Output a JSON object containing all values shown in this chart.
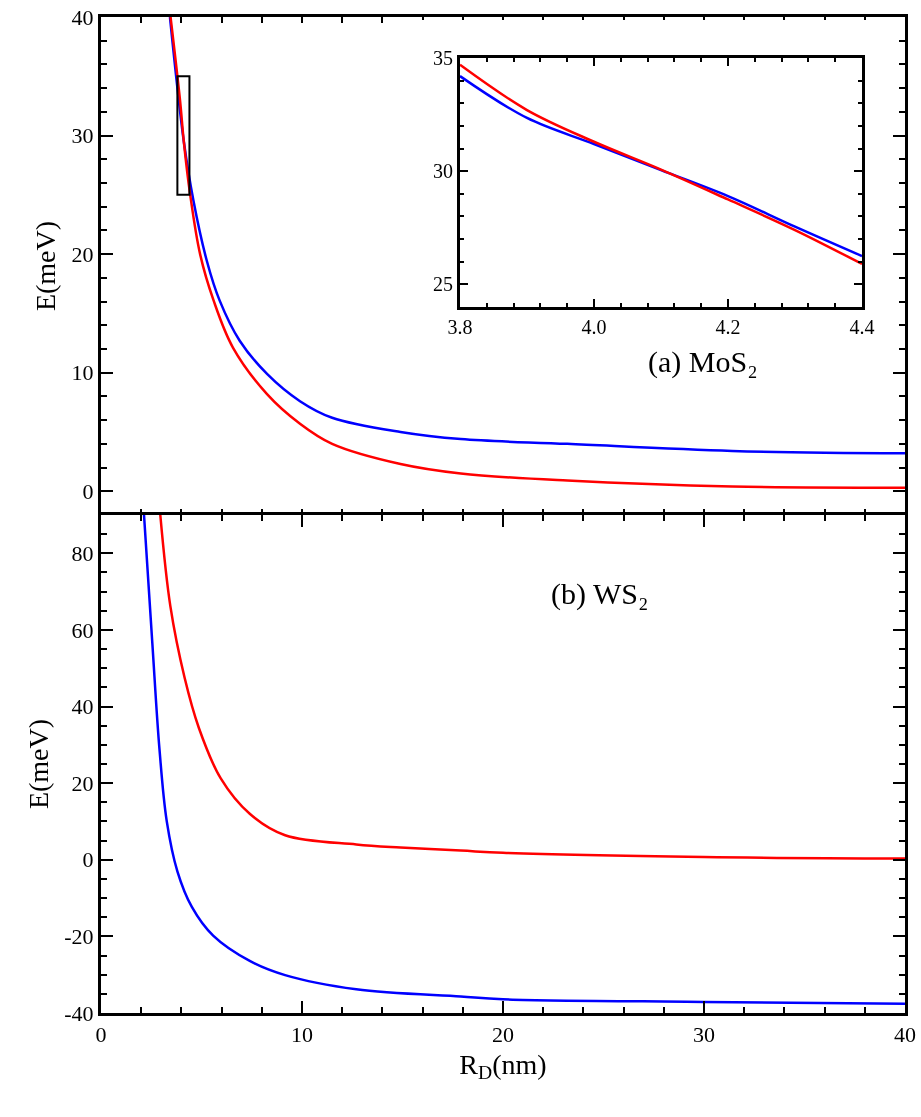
{
  "chart_data": [
    {
      "type": "line",
      "ylabel": "E(meV)",
      "annotations": [
        "(a) MoS₂"
      ],
      "tick_labels": "y",
      "xlim": [
        0,
        40
      ],
      "ylim": [
        -2,
        40
      ],
      "xticks": [
        0,
        {
          "value": 2,
          "label": null
        },
        {
          "value": 4,
          "label": null
        },
        {
          "value": 6,
          "label": null
        },
        {
          "value": 8,
          "label": null
        },
        {
          "value": 10,
          "label": null
        },
        {
          "value": 12,
          "label": null
        },
        {
          "value": 14,
          "label": null
        },
        {
          "value": 16,
          "label": null
        },
        {
          "value": 18,
          "label": null
        },
        {
          "value": 20,
          "label": null
        },
        {
          "value": 22,
          "label": null
        },
        {
          "value": 24,
          "label": null
        },
        {
          "value": 26,
          "label": null
        },
        {
          "value": 28,
          "label": null
        },
        {
          "value": 30,
          "label": null
        },
        {
          "value": 32,
          "label": null
        },
        {
          "value": 34,
          "label": null
        },
        {
          "value": 36,
          "label": null
        },
        {
          "value": 38,
          "label": null
        },
        {
          "value": 40,
          "label": null
        }
      ],
      "yticks": [
        0,
        {
          "value": 2,
          "label": null
        },
        {
          "value": 4,
          "label": null
        },
        {
          "value": 6,
          "label": null
        },
        {
          "value": 8,
          "label": null
        },
        10,
        {
          "value": 12,
          "label": null
        },
        {
          "value": 14,
          "label": null
        },
        {
          "value": 16,
          "label": null
        },
        {
          "value": 18,
          "label": null
        },
        20,
        {
          "value": 22,
          "label": null
        },
        {
          "value": 24,
          "label": null
        },
        {
          "value": 26,
          "label": null
        },
        {
          "value": 28,
          "label": null
        },
        30,
        {
          "value": 32,
          "label": null
        },
        {
          "value": 34,
          "label": null
        },
        {
          "value": 36,
          "label": null
        },
        {
          "value": 38,
          "label": null
        },
        40
      ],
      "grid": false,
      "series": [
        {
          "color": "#0000ff",
          "x": [
            3.43,
            4.12,
            4.6,
            5.27,
            5.9,
            6.9,
            8.26,
            9.9,
            11.5,
            14.9,
            17.9,
            23.2,
            31.4,
            40
          ],
          "values": [
            40,
            29.5,
            24.5,
            19.4,
            16.1,
            12.7,
            9.9,
            7.6,
            6.2,
            5.0,
            4.4,
            4.0,
            3.4,
            3.2
          ]
        },
        {
          "color": "#ff0000",
          "x": [
            3.46,
            3.93,
            4.12,
            4.43,
            4.93,
            5.6,
            6.57,
            8.26,
            9.9,
            11.5,
            14.9,
            17.9,
            23.2,
            31.4,
            40
          ],
          "values": [
            40,
            33,
            29.5,
            25.1,
            20.0,
            16.1,
            12.1,
            8.2,
            5.7,
            4.0,
            2.3,
            1.5,
            0.9,
            0.4,
            0.3
          ]
        }
      ]
    },
    {
      "type": "line",
      "xlim": [
        3.8,
        4.4
      ],
      "ylim": [
        24,
        35
      ],
      "xticks": [
        {
          "value": 3.8,
          "label": "3.8"
        },
        {
          "value": 3.84,
          "label": null
        },
        {
          "value": 3.88,
          "label": null
        },
        {
          "value": 3.92,
          "label": null
        },
        {
          "value": 3.96,
          "label": null
        },
        {
          "value": 4,
          "label": "4.0"
        },
        {
          "value": 4.04,
          "label": null
        },
        {
          "value": 4.08,
          "label": null
        },
        {
          "value": 4.12,
          "label": null
        },
        {
          "value": 4.16,
          "label": null
        },
        {
          "value": 4.2,
          "label": "4.2"
        },
        {
          "value": 4.24,
          "label": null
        },
        {
          "value": 4.28,
          "label": null
        },
        {
          "value": 4.32,
          "label": null
        },
        {
          "value": 4.36,
          "label": null
        },
        {
          "value": 4.4,
          "label": "4.4"
        }
      ],
      "yticks": [
        25,
        {
          "value": 26,
          "label": null
        },
        {
          "value": 27,
          "label": null
        },
        {
          "value": 28,
          "label": null
        },
        {
          "value": 29,
          "label": null
        },
        30,
        {
          "value": 31,
          "label": null
        },
        {
          "value": 32,
          "label": null
        },
        {
          "value": 33,
          "label": null
        },
        {
          "value": 34,
          "label": null
        },
        35
      ],
      "grid": false,
      "series": [
        {
          "color": "#0000ff",
          "x": [
            3.8,
            3.9,
            4.0,
            4.1,
            4.2,
            4.3,
            4.4
          ],
          "values": [
            34.2,
            32.35,
            31.2,
            30.05,
            28.9,
            27.55,
            26.25
          ]
        },
        {
          "color": "#ff0000",
          "x": [
            3.8,
            3.9,
            4.0,
            4.1,
            4.2,
            4.3,
            4.4
          ],
          "values": [
            34.7,
            32.7,
            31.3,
            30.07,
            28.75,
            27.4,
            25.9
          ]
        }
      ]
    },
    {
      "type": "line",
      "xlabel": "R$_{D}$(nm)",
      "ylabel": "E(meV)",
      "annotations": [
        "(b) WS₂"
      ],
      "xlim": [
        0,
        40
      ],
      "ylim": [
        -40,
        90
      ],
      "xticks": [
        0,
        {
          "value": 2,
          "label": null
        },
        {
          "value": 4,
          "label": null
        },
        {
          "value": 6,
          "label": null
        },
        {
          "value": 8,
          "label": null
        },
        10,
        {
          "value": 12,
          "label": null
        },
        {
          "value": 14,
          "label": null
        },
        {
          "value": 16,
          "label": null
        },
        {
          "value": 18,
          "label": null
        },
        20,
        {
          "value": 22,
          "label": null
        },
        {
          "value": 24,
          "label": null
        },
        {
          "value": 26,
          "label": null
        },
        {
          "value": 28,
          "label": null
        },
        30,
        {
          "value": 32,
          "label": null
        },
        {
          "value": 34,
          "label": null
        },
        {
          "value": 36,
          "label": null
        },
        {
          "value": 38,
          "label": null
        },
        40
      ],
      "yticks": [
        -40,
        {
          "value": -35,
          "label": null
        },
        {
          "value": -30,
          "label": null
        },
        {
          "value": -25,
          "label": null
        },
        -20,
        {
          "value": -15,
          "label": null
        },
        {
          "value": -10,
          "label": null
        },
        {
          "value": -5,
          "label": null
        },
        0,
        {
          "value": 5,
          "label": null
        },
        {
          "value": 10,
          "label": null
        },
        {
          "value": 15,
          "label": null
        },
        20,
        {
          "value": 25,
          "label": null
        },
        {
          "value": 30,
          "label": null
        },
        {
          "value": 35,
          "label": null
        },
        40,
        {
          "value": 45,
          "label": null
        },
        {
          "value": 50,
          "label": null
        },
        {
          "value": 55,
          "label": null
        },
        60,
        {
          "value": 65,
          "label": null
        },
        {
          "value": 70,
          "label": null
        },
        {
          "value": 75,
          "label": null
        },
        80,
        {
          "value": 85,
          "label": null
        }
      ],
      "grid": false,
      "series": [
        {
          "color": "#ff0000",
          "x": [
            2.95,
            3.45,
            4.16,
            4.87,
            5.95,
            7.4,
            9.16,
            12.7,
            14.9,
            17.9,
            20,
            30,
            40
          ],
          "values": [
            90,
            66.2,
            47.5,
            34.4,
            21.3,
            12.0,
            6.4,
            4.0,
            3.2,
            2.4,
            1.8,
            0.7,
            0.3
          ]
        },
        {
          "color": "#0000ff",
          "x": [
            2.14,
            2.55,
            2.91,
            3.27,
            3.8,
            4.52,
            5.58,
            7.4,
            9.16,
            12.7,
            17.9,
            20,
            30,
            40
          ],
          "values": [
            90,
            56.8,
            28.8,
            10.1,
            -3.0,
            -12.3,
            -19.8,
            -26.4,
            -30.1,
            -33.8,
            -35.7,
            -36.4,
            -37.1,
            -37.6
          ]
        }
      ]
    }
  ]
}
